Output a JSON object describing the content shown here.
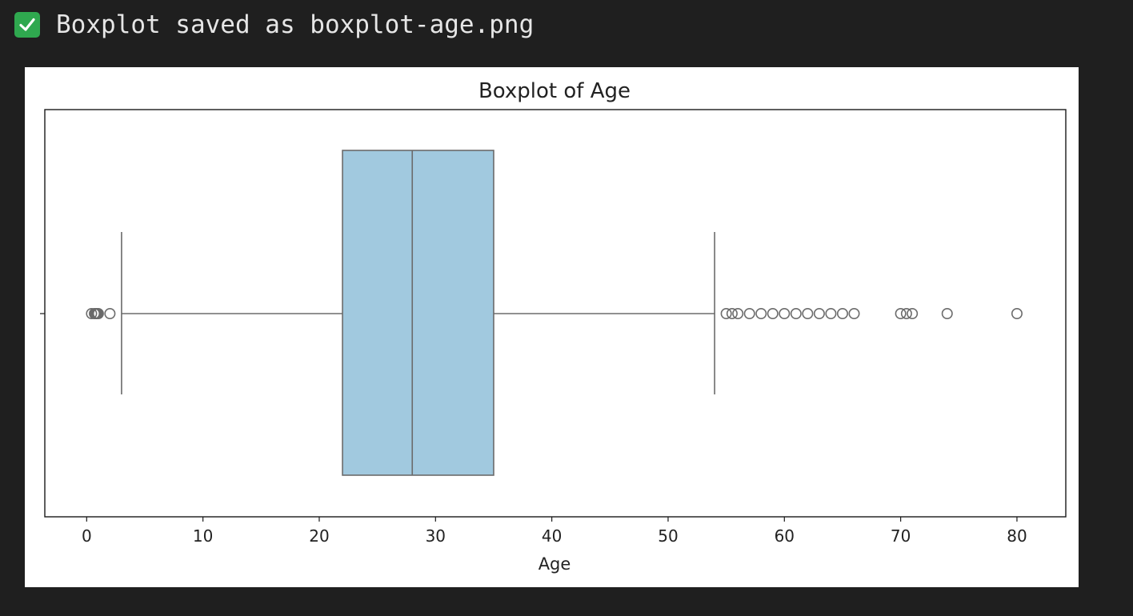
{
  "console": {
    "icon": "check-mark-icon",
    "message": "Boxplot saved as boxplot-age.png"
  },
  "chart_data": {
    "type": "boxplot",
    "orientation": "horizontal",
    "title": "Boxplot of Age",
    "xlabel": "Age",
    "ylabel": "",
    "xlim": [
      -3.6,
      84.2
    ],
    "xticks": [
      0,
      10,
      20,
      30,
      40,
      50,
      60,
      70,
      80
    ],
    "xtick_labels": [
      "0",
      "10",
      "20",
      "30",
      "40",
      "50",
      "60",
      "70",
      "80"
    ],
    "grid": false,
    "box": {
      "whisker_low": 3,
      "q1": 22,
      "median": 28,
      "q3": 35,
      "whisker_high": 54,
      "fill_color": "#a1c9df",
      "edge_color": "#6b6b6b"
    },
    "outliers": [
      0.42,
      0.67,
      0.75,
      0.83,
      0.92,
      1,
      2,
      55,
      55.5,
      56,
      57,
      58,
      59,
      60,
      61,
      62,
      63,
      64,
      65,
      66,
      70,
      70.5,
      71,
      74,
      80
    ]
  }
}
